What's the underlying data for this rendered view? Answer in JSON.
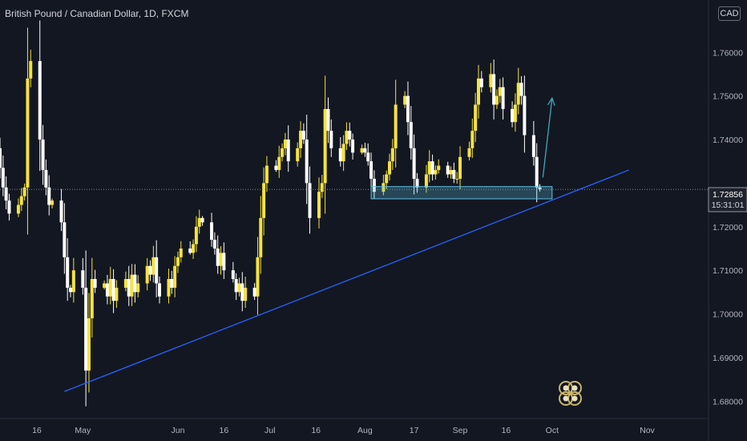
{
  "header": {
    "symbol_title": "British Pound / Canadian Dollar, 1D, FXCM",
    "currency": "CAD"
  },
  "price_badge": {
    "price": "1.72856",
    "countdown": "15:31:01",
    "color": "#1e222d"
  },
  "colors": {
    "background": "#131722",
    "bull": "#f5e33b",
    "bear": "#ffffff",
    "trendline": "#2962ff",
    "zone": "#5fc3e4",
    "arrow": "#3fa9b5",
    "axis_text": "#b2b5be"
  },
  "chart_data": {
    "type": "candlestick",
    "title": "British Pound / Canadian Dollar, 1D, FXCM",
    "ylim": [
      1.676,
      1.772
    ],
    "y_ticks": [
      {
        "value": 1.68,
        "label": "1.68000"
      },
      {
        "value": 1.69,
        "label": "1.69000"
      },
      {
        "value": 1.7,
        "label": "1.70000"
      },
      {
        "value": 1.71,
        "label": "1.71000"
      },
      {
        "value": 1.72,
        "label": "1.72000"
      },
      {
        "value": 1.74,
        "label": "1.74000"
      },
      {
        "value": 1.75,
        "label": "1.75000"
      },
      {
        "value": 1.76,
        "label": "1.76000"
      }
    ],
    "x_ticks": [
      {
        "date": "2023-04-16",
        "label": "16"
      },
      {
        "date": "2023-05-01",
        "label": "May"
      },
      {
        "date": "2023-06-01",
        "label": "Jun"
      },
      {
        "date": "2023-06-16",
        "label": "16"
      },
      {
        "date": "2023-07-01",
        "label": "Jul"
      },
      {
        "date": "2023-07-16",
        "label": "16"
      },
      {
        "date": "2023-08-01",
        "label": "Aug"
      },
      {
        "date": "2023-08-17",
        "label": "17"
      },
      {
        "date": "2023-09-01",
        "label": "Sep"
      },
      {
        "date": "2023-09-16",
        "label": "16"
      },
      {
        "date": "2023-10-01",
        "label": "Oct"
      },
      {
        "date": "2023-11-01",
        "label": "Nov"
      }
    ],
    "x_start": "2023-04-04",
    "x_end": "2023-11-21",
    "close_series": [
      [
        "2023-04-03",
        1.738
      ],
      [
        "2023-04-04",
        1.7335
      ],
      [
        "2023-04-05",
        1.729
      ],
      [
        "2023-04-06",
        1.726
      ],
      [
        "2023-04-07",
        1.723
      ],
      [
        "2023-04-10",
        1.725
      ],
      [
        "2023-04-11",
        1.727
      ],
      [
        "2023-04-12",
        1.729
      ],
      [
        "2023-04-13",
        1.754
      ],
      [
        "2023-04-14",
        1.758
      ],
      [
        "2023-04-17",
        1.74
      ],
      [
        "2023-04-18",
        1.733
      ],
      [
        "2023-04-19",
        1.729
      ],
      [
        "2023-04-20",
        1.725
      ],
      [
        "2023-04-21",
        1.726
      ],
      [
        "2023-04-24",
        1.721
      ],
      [
        "2023-04-25",
        1.713
      ],
      [
        "2023-04-26",
        1.706
      ],
      [
        "2023-04-27",
        1.705
      ],
      [
        "2023-04-28",
        1.71
      ],
      [
        "2023-05-01",
        1.706
      ],
      [
        "2023-05-02",
        1.687
      ],
      [
        "2023-05-03",
        1.699
      ],
      [
        "2023-05-04",
        1.708
      ],
      [
        "2023-05-05",
        1.706
      ],
      [
        "2023-05-08",
        1.707
      ],
      [
        "2023-05-09",
        1.704
      ],
      [
        "2023-05-10",
        1.708
      ],
      [
        "2023-05-11",
        1.703
      ],
      [
        "2023-05-12",
        1.706
      ],
      [
        "2023-05-15",
        1.708
      ],
      [
        "2023-05-16",
        1.704
      ],
      [
        "2023-05-17",
        1.709
      ],
      [
        "2023-05-18",
        1.705
      ],
      [
        "2023-05-19",
        1.707
      ],
      [
        "2023-05-22",
        1.711
      ],
      [
        "2023-05-23",
        1.709
      ],
      [
        "2023-05-24",
        1.713
      ],
      [
        "2023-05-25",
        1.707
      ],
      [
        "2023-05-26",
        1.704
      ],
      [
        "2023-05-29",
        1.708
      ],
      [
        "2023-05-30",
        1.706
      ],
      [
        "2023-05-31",
        1.711
      ],
      [
        "2023-06-01",
        1.713
      ],
      [
        "2023-06-02",
        1.715
      ],
      [
        "2023-06-05",
        1.714
      ],
      [
        "2023-06-06",
        1.716
      ],
      [
        "2023-06-07",
        1.72
      ],
      [
        "2023-06-08",
        1.722
      ],
      [
        "2023-06-09",
        1.721
      ],
      [
        "2023-06-12",
        1.717
      ],
      [
        "2023-06-13",
        1.715
      ],
      [
        "2023-06-14",
        1.711
      ],
      [
        "2023-06-15",
        1.714
      ],
      [
        "2023-06-16",
        1.71
      ],
      [
        "2023-06-19",
        1.708
      ],
      [
        "2023-06-20",
        1.705
      ],
      [
        "2023-06-21",
        1.707
      ],
      [
        "2023-06-22",
        1.703
      ],
      [
        "2023-06-23",
        1.706
      ],
      [
        "2023-06-26",
        1.704
      ],
      [
        "2023-06-27",
        1.713
      ],
      [
        "2023-06-28",
        1.722
      ],
      [
        "2023-06-29",
        1.73
      ],
      [
        "2023-06-30",
        1.734
      ],
      [
        "2023-07-03",
        1.733
      ],
      [
        "2023-07-04",
        1.736
      ],
      [
        "2023-07-05",
        1.738
      ],
      [
        "2023-07-06",
        1.74
      ],
      [
        "2023-07-07",
        1.735
      ],
      [
        "2023-07-10",
        1.738
      ],
      [
        "2023-07-11",
        1.742
      ],
      [
        "2023-07-12",
        1.74
      ],
      [
        "2023-07-13",
        1.73
      ],
      [
        "2023-07-14",
        1.722
      ],
      [
        "2023-07-17",
        1.728
      ],
      [
        "2023-07-18",
        1.73
      ],
      [
        "2023-07-19",
        1.747
      ],
      [
        "2023-07-20",
        1.742
      ],
      [
        "2023-07-21",
        1.738
      ],
      [
        "2023-07-24",
        1.735
      ],
      [
        "2023-07-25",
        1.739
      ],
      [
        "2023-07-26",
        1.742
      ],
      [
        "2023-07-27",
        1.74
      ],
      [
        "2023-07-28",
        1.737
      ],
      [
        "2023-07-31",
        1.738
      ],
      [
        "2023-08-01",
        1.737
      ],
      [
        "2023-08-02",
        1.735
      ],
      [
        "2023-08-03",
        1.731
      ],
      [
        "2023-08-04",
        1.728
      ],
      [
        "2023-08-07",
        1.73
      ],
      [
        "2023-08-08",
        1.732
      ],
      [
        "2023-08-09",
        1.735
      ],
      [
        "2023-08-10",
        1.738
      ],
      [
        "2023-08-11",
        1.748
      ],
      [
        "2023-08-14",
        1.75
      ],
      [
        "2023-08-15",
        1.744
      ],
      [
        "2023-08-16",
        1.738
      ],
      [
        "2023-08-17",
        1.731
      ],
      [
        "2023-08-18",
        1.729
      ],
      [
        "2023-08-21",
        1.732
      ],
      [
        "2023-08-22",
        1.735
      ],
      [
        "2023-08-23",
        1.732
      ],
      [
        "2023-08-24",
        1.733
      ],
      [
        "2023-08-25",
        1.734
      ],
      [
        "2023-08-28",
        1.732
      ],
      [
        "2023-08-29",
        1.733
      ],
      [
        "2023-08-30",
        1.731
      ],
      [
        "2023-08-31",
        1.731
      ],
      [
        "2023-09-01",
        1.736
      ],
      [
        "2023-09-04",
        1.738
      ],
      [
        "2023-09-05",
        1.742
      ],
      [
        "2023-09-06",
        1.748
      ],
      [
        "2023-09-07",
        1.754
      ],
      [
        "2023-09-08",
        1.752
      ],
      [
        "2023-09-11",
        1.755
      ],
      [
        "2023-09-12",
        1.748
      ],
      [
        "2023-09-13",
        1.75
      ],
      [
        "2023-09-14",
        1.752
      ],
      [
        "2023-09-15",
        1.747
      ],
      [
        "2023-09-18",
        1.744
      ],
      [
        "2023-09-19",
        1.748
      ],
      [
        "2023-09-20",
        1.753
      ],
      [
        "2023-09-21",
        1.75
      ],
      [
        "2023-09-22",
        1.741
      ],
      [
        "2023-09-25",
        1.736
      ],
      [
        "2023-09-26",
        1.729
      ],
      [
        "2023-09-27",
        1.7286
      ]
    ],
    "trendline": [
      [
        "2023-04-25",
        1.6822
      ],
      [
        "2023-10-26",
        1.733
      ]
    ],
    "support_zone": {
      "from": "2023-08-03",
      "to": "2023-10-01",
      "low": 1.7264,
      "high": 1.7292
    },
    "arrow": {
      "from": [
        "2023-09-28",
        1.7313
      ],
      "to": [
        "2023-10-01",
        1.7495
      ]
    },
    "last_price": 1.72856,
    "grid": false
  }
}
